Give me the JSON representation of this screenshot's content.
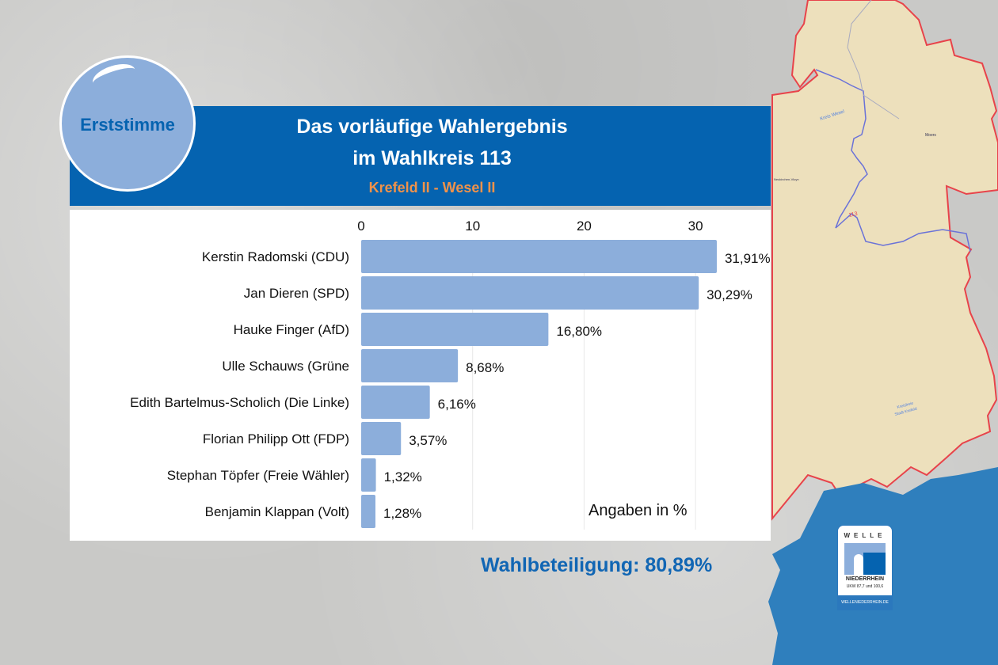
{
  "header": {
    "title_line1": "Das vorläufige Wahlergebnis",
    "title_line2": "im Wahlkreis 113",
    "subtitle": "Krefeld II - Wesel II"
  },
  "badge": {
    "label": "Erststimme"
  },
  "turnout": {
    "label": "Wahlbeteiligung: 80,89%",
    "value": 80.89
  },
  "map": {
    "labels": [
      "Kreis Wesel",
      "Moers",
      "Neukirchen-Vluyn",
      "113",
      "Kreisfreie",
      "Stadt Krefeld"
    ]
  },
  "logo": {
    "brand_top": "WELLE",
    "brand_name": "NIEDERRHEIN",
    "frequency": "UKW 87,7 und 100,6",
    "url": "WELLENIEDERRHEIN.DE"
  },
  "colors": {
    "header_blue": "#0563b0",
    "bar": "#8caedb",
    "subtitle_orange": "#f0924a",
    "map_fill": "#ede0bc",
    "map_border_red": "#e8434a",
    "map_border_blue": "#6a72d8",
    "splash_blue": "#2f7fbd"
  },
  "chart_data": {
    "type": "bar",
    "orientation": "horizontal",
    "categories": [
      "Kerstin Radomski (CDU)",
      "Jan Dieren (SPD)",
      "Hauke Finger (AfD)",
      "Ulle Schauws (Grüne",
      "Edith Bartelmus-Scholich (Die Linke)",
      "Florian Philipp Ott (FDP)",
      "Stephan Töpfer (Freie Wähler)",
      "Benjamin Klappan (Volt)"
    ],
    "values": [
      31.91,
      30.29,
      16.8,
      8.68,
      6.16,
      3.57,
      1.32,
      1.28
    ],
    "value_labels": [
      "31,91%",
      "30,29%",
      "16,80%",
      "8,68%",
      "6,16%",
      "3,57%",
      "1,32%",
      "1,28%"
    ],
    "x_ticks": [
      "0",
      "10",
      "20",
      "30"
    ],
    "x_tick_values": [
      0,
      10,
      20,
      30
    ],
    "xlim": [
      0,
      36.5
    ],
    "annotation": "Angaben in %",
    "grid": true,
    "axis_position": "top"
  }
}
